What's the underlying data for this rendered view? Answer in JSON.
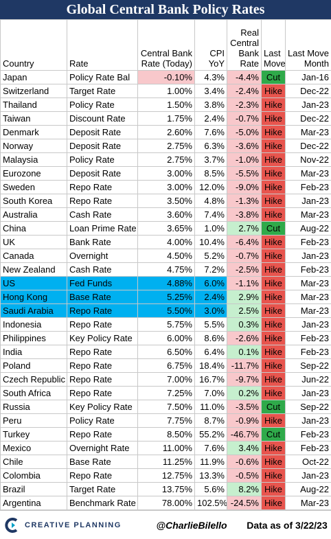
{
  "header": {
    "title": "Global Central Bank Policy Rates"
  },
  "table": {
    "columns": [
      "Country",
      "Rate",
      "Central Bank Rate (Today)",
      "CPI YoY",
      "Real Central Bank Rate",
      "Last Move",
      "Last Move Month"
    ],
    "rows": [
      [
        "Japan",
        "Policy Rate Bal",
        "-0.10%",
        "4.3%",
        "-4.4%",
        "Cut",
        "Jan-16"
      ],
      [
        "Switzerland",
        "Target Rate",
        "1.00%",
        "3.4%",
        "-2.4%",
        "Hike",
        "Dec-22"
      ],
      [
        "Thailand",
        "Policy Rate",
        "1.50%",
        "3.8%",
        "-2.3%",
        "Hike",
        "Jan-23"
      ],
      [
        "Taiwan",
        "Discount Rate",
        "1.75%",
        "2.4%",
        "-0.7%",
        "Hike",
        "Dec-22"
      ],
      [
        "Denmark",
        "Deposit Rate",
        "2.60%",
        "7.6%",
        "-5.0%",
        "Hike",
        "Mar-23"
      ],
      [
        "Norway",
        "Deposit Rate",
        "2.75%",
        "6.3%",
        "-3.6%",
        "Hike",
        "Dec-22"
      ],
      [
        "Malaysia",
        "Policy Rate",
        "2.75%",
        "3.7%",
        "-1.0%",
        "Hike",
        "Nov-22"
      ],
      [
        "Eurozone",
        "Deposit Rate",
        "3.00%",
        "8.5%",
        "-5.5%",
        "Hike",
        "Mar-23"
      ],
      [
        "Sweden",
        "Repo Rate",
        "3.00%",
        "12.0%",
        "-9.0%",
        "Hike",
        "Feb-23"
      ],
      [
        "South Korea",
        "Repo Rate",
        "3.50%",
        "4.8%",
        "-1.3%",
        "Hike",
        "Jan-23"
      ],
      [
        "Australia",
        "Cash Rate",
        "3.60%",
        "7.4%",
        "-3.8%",
        "Hike",
        "Mar-23"
      ],
      [
        "China",
        "Loan Prime Rate",
        "3.65%",
        "1.0%",
        "2.7%",
        "Cut",
        "Aug-22"
      ],
      [
        "UK",
        "Bank Rate",
        "4.00%",
        "10.4%",
        "-6.4%",
        "Hike",
        "Feb-23"
      ],
      [
        "Canada",
        "Overnight",
        "4.50%",
        "5.2%",
        "-0.7%",
        "Hike",
        "Jan-23"
      ],
      [
        "New Zealand",
        "Cash Rate",
        "4.75%",
        "7.2%",
        "-2.5%",
        "Hike",
        "Feb-23"
      ],
      [
        "US",
        "Fed Funds",
        "4.88%",
        "6.0%",
        "-1.1%",
        "Hike",
        "Mar-23"
      ],
      [
        "Hong Kong",
        "Base Rate",
        "5.25%",
        "2.4%",
        "2.9%",
        "Hike",
        "Mar-23"
      ],
      [
        "Saudi Arabia",
        "Repo Rate",
        "5.50%",
        "3.0%",
        "2.5%",
        "Hike",
        "Mar-23"
      ],
      [
        "Indonesia",
        "Repo Rate",
        "5.75%",
        "5.5%",
        "0.3%",
        "Hike",
        "Jan-23"
      ],
      [
        "Philippines",
        "Key Policy Rate",
        "6.00%",
        "8.6%",
        "-2.6%",
        "Hike",
        "Feb-23"
      ],
      [
        "India",
        "Repo Rate",
        "6.50%",
        "6.4%",
        "0.1%",
        "Hike",
        "Feb-23"
      ],
      [
        "Poland",
        "Repo Rate",
        "6.75%",
        "18.4%",
        "-11.7%",
        "Hike",
        "Sep-22"
      ],
      [
        "Czech Republic",
        "Repo Rate",
        "7.00%",
        "16.7%",
        "-9.7%",
        "Hike",
        "Jun-22"
      ],
      [
        "South Africa",
        "Repo Rate",
        "7.25%",
        "7.0%",
        "0.2%",
        "Hike",
        "Jan-23"
      ],
      [
        "Russia",
        "Key Policy Rate",
        "7.50%",
        "11.0%",
        "-3.5%",
        "Cut",
        "Sep-22"
      ],
      [
        "Peru",
        "Policy Rate",
        "7.75%",
        "8.7%",
        "-0.9%",
        "Hike",
        "Jan-23"
      ],
      [
        "Turkey",
        "Repo Rate",
        "8.50%",
        "55.2%",
        "-46.7%",
        "Cut",
        "Feb-23"
      ],
      [
        "Mexico",
        "Overnight Rate",
        "11.00%",
        "7.6%",
        "3.4%",
        "Hike",
        "Feb-23"
      ],
      [
        "Chile",
        "Base Rate",
        "11.25%",
        "11.9%",
        "-0.6%",
        "Hike",
        "Oct-22"
      ],
      [
        "Colombia",
        "Repo Rate",
        "12.75%",
        "13.3%",
        "-0.5%",
        "Hike",
        "Jan-23"
      ],
      [
        "Brazil",
        "Target Rate",
        "13.75%",
        "5.6%",
        "8.2%",
        "Hike",
        "Aug-22"
      ],
      [
        "Argentina",
        "Benchmark Rate",
        "78.00%",
        "102.5%",
        "-24.5%",
        "Hike",
        "Mar-23"
      ]
    ],
    "move_colors": {
      "Hike": "#e8554e",
      "Cut": "#2faa4a"
    },
    "negative_color": "#f8c8cb",
    "positive_color": "#c6efce",
    "highlight_color": "#00b0f0"
  },
  "footer": {
    "logo": "CREATIVE PLANNING",
    "handle": "@CharlieBilello",
    "date_note": "Data as of 3/22/23"
  }
}
